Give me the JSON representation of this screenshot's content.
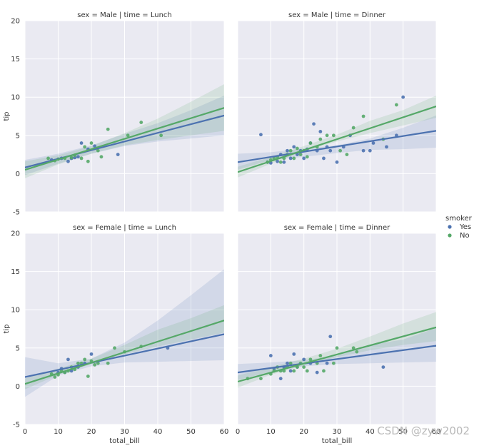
{
  "chart_data": {
    "type": "scatter",
    "subtype": "facet-grid-regression",
    "xlabel": "total_bill",
    "ylabel": "tip",
    "xlim": [
      0,
      60
    ],
    "ylim": [
      -5,
      20
    ],
    "xticks": [
      0,
      10,
      20,
      30,
      40,
      50,
      60
    ],
    "yticks": [
      -5,
      0,
      5,
      10,
      15,
      20
    ],
    "grid": true,
    "legend": {
      "title": "smoker",
      "placement": "right",
      "entries": [
        {
          "label": "Yes",
          "color": "#4c72b0"
        },
        {
          "label": "No",
          "color": "#55a868"
        }
      ]
    },
    "panels": [
      {
        "title": "sex = Male | time = Lunch",
        "series": [
          {
            "name": "Yes",
            "points": [
              [
                8,
                1.8
              ],
              [
                11,
                2.0
              ],
              [
                13,
                1.6
              ],
              [
                14,
                2.0
              ],
              [
                15,
                2.1
              ],
              [
                16,
                2.2
              ],
              [
                17,
                4.0
              ],
              [
                19,
                3.2
              ],
              [
                21,
                3.6
              ],
              [
                28,
                2.5
              ]
            ],
            "fit": {
              "x": [
                0,
                60
              ],
              "y": [
                0.8,
                7.6
              ]
            },
            "ci": {
              "x": [
                0,
                10,
                20,
                30,
                40,
                50,
                60
              ],
              "lower": [
                -0.2,
                1.3,
                2.6,
                3.6,
                4.2,
                4.6,
                5.0
              ],
              "upper": [
                1.8,
                2.6,
                3.7,
                5.2,
                6.6,
                8.3,
                10.2
              ]
            }
          },
          {
            "name": "No",
            "points": [
              [
                7,
                2.0
              ],
              [
                9,
                1.7
              ],
              [
                10,
                1.9
              ],
              [
                12,
                2.0
              ],
              [
                14,
                2.1
              ],
              [
                15,
                2.4
              ],
              [
                17,
                2.0
              ],
              [
                18,
                3.5
              ],
              [
                19,
                1.6
              ],
              [
                20,
                4.0
              ],
              [
                22,
                3.0
              ],
              [
                23,
                2.2
              ],
              [
                25,
                5.8
              ],
              [
                31,
                5.0
              ],
              [
                35,
                6.7
              ],
              [
                41,
                5.0
              ]
            ],
            "fit": {
              "x": [
                0,
                60
              ],
              "y": [
                0.5,
                8.6
              ]
            },
            "ci": {
              "x": [
                0,
                10,
                20,
                30,
                40,
                50,
                60
              ],
              "lower": [
                -0.6,
                1.2,
                2.6,
                3.7,
                4.4,
                5.0,
                5.6
              ],
              "upper": [
                1.6,
                2.4,
                3.6,
                5.3,
                7.2,
                9.4,
                11.7
              ]
            }
          }
        ]
      },
      {
        "title": "sex = Male | time = Dinner",
        "series": [
          {
            "name": "Yes",
            "points": [
              [
                7,
                5.1
              ],
              [
                9,
                1.5
              ],
              [
                10,
                1.4
              ],
              [
                12,
                1.6
              ],
              [
                13,
                2.5
              ],
              [
                14,
                1.5
              ],
              [
                15,
                3.0
              ],
              [
                16,
                2.0
              ],
              [
                17,
                3.5
              ],
              [
                18,
                2.5
              ],
              [
                19,
                3.0
              ],
              [
                20,
                2.0
              ],
              [
                21,
                3.2
              ],
              [
                22,
                4.0
              ],
              [
                23,
                6.5
              ],
              [
                24,
                3.0
              ],
              [
                25,
                5.5
              ],
              [
                26,
                2.0
              ],
              [
                27,
                3.5
              ],
              [
                28,
                3.0
              ],
              [
                30,
                1.5
              ],
              [
                32,
                3.5
              ],
              [
                34,
                5.0
              ],
              [
                38,
                3.0
              ],
              [
                40,
                3.0
              ],
              [
                41,
                4.0
              ],
              [
                45,
                3.5
              ],
              [
                48,
                5.0
              ],
              [
                50,
                10.0
              ]
            ],
            "fit": {
              "x": [
                0,
                60
              ],
              "y": [
                1.5,
                5.6
              ]
            },
            "ci": {
              "x": [
                0,
                10,
                20,
                30,
                40,
                50,
                60
              ],
              "lower": [
                0.5,
                1.8,
                2.2,
                2.7,
                3.1,
                3.2,
                3.4
              ],
              "upper": [
                2.6,
                2.8,
                3.3,
                3.7,
                4.6,
                6.0,
                7.6
              ]
            }
          },
          {
            "name": "No",
            "points": [
              [
                9,
                1.5
              ],
              [
                10,
                1.8
              ],
              [
                11,
                2.0
              ],
              [
                12,
                2.2
              ],
              [
                13,
                1.5
              ],
              [
                14,
                2.0
              ],
              [
                15,
                2.5
              ],
              [
                16,
                3.0
              ],
              [
                17,
                2.0
              ],
              [
                18,
                3.3
              ],
              [
                19,
                2.5
              ],
              [
                20,
                3.0
              ],
              [
                21,
                2.2
              ],
              [
                22,
                4.0
              ],
              [
                24,
                3.5
              ],
              [
                25,
                4.5
              ],
              [
                27,
                5.0
              ],
              [
                29,
                5.0
              ],
              [
                31,
                3.0
              ],
              [
                33,
                2.5
              ],
              [
                35,
                6.0
              ],
              [
                38,
                7.5
              ],
              [
                44,
                4.5
              ],
              [
                48,
                9.0
              ]
            ],
            "fit": {
              "x": [
                0,
                60
              ],
              "y": [
                0.2,
                8.8
              ]
            },
            "ci": {
              "x": [
                0,
                10,
                20,
                30,
                40,
                50,
                60
              ],
              "lower": [
                -0.5,
                1.3,
                2.9,
                4.2,
                5.3,
                6.3,
                7.3
              ],
              "upper": [
                0.9,
                2.2,
                3.6,
                5.1,
                6.9,
                8.3,
                10.2
              ]
            }
          }
        ]
      },
      {
        "title": "sex = Female | time = Lunch",
        "series": [
          {
            "name": "Yes",
            "points": [
              [
                10,
                1.8
              ],
              [
                11,
                2.3
              ],
              [
                12,
                1.8
              ],
              [
                13,
                3.5
              ],
              [
                14,
                2.0
              ],
              [
                16,
                2.5
              ],
              [
                18,
                3.0
              ],
              [
                20,
                4.2
              ],
              [
                43,
                5.0
              ]
            ],
            "fit": {
              "x": [
                0,
                60
              ],
              "y": [
                1.2,
                6.8
              ]
            },
            "ci": {
              "x": [
                0,
                10,
                20,
                30,
                40,
                50,
                60
              ],
              "lower": [
                -1.4,
                1.4,
                2.6,
                3.1,
                3.2,
                3.3,
                3.4
              ],
              "upper": [
                3.8,
                3.0,
                3.6,
                5.7,
                8.6,
                11.9,
                15.3
              ]
            }
          },
          {
            "name": "No",
            "points": [
              [
                8,
                1.6
              ],
              [
                9,
                1.2
              ],
              [
                10,
                1.5
              ],
              [
                11,
                2.0
              ],
              [
                12,
                1.8
              ],
              [
                13,
                2.0
              ],
              [
                14,
                2.5
              ],
              [
                15,
                2.2
              ],
              [
                16,
                3.0
              ],
              [
                17,
                3.0
              ],
              [
                18,
                3.5
              ],
              [
                19,
                1.3
              ],
              [
                20,
                3.3
              ],
              [
                21,
                2.8
              ],
              [
                22,
                3.0
              ],
              [
                25,
                3.0
              ],
              [
                27,
                5.0
              ],
              [
                30,
                4.5
              ],
              [
                35,
                5.2
              ]
            ],
            "fit": {
              "x": [
                0,
                60
              ],
              "y": [
                0.3,
                8.6
              ]
            },
            "ci": {
              "x": [
                0,
                10,
                20,
                30,
                40,
                50,
                60
              ],
              "lower": [
                -0.4,
                1.5,
                2.9,
                4.2,
                5.2,
                6.1,
                7.0
              ],
              "upper": [
                1.0,
                2.3,
                3.6,
                5.4,
                7.4,
                8.9,
                10.6
              ]
            }
          }
        ]
      },
      {
        "title": "sex = Female | time = Dinner",
        "series": [
          {
            "name": "Yes",
            "points": [
              [
                10,
                4.0
              ],
              [
                11,
                2.3
              ],
              [
                13,
                1.0
              ],
              [
                14,
                2.5
              ],
              [
                15,
                3.0
              ],
              [
                16,
                2.0
              ],
              [
                17,
                4.2
              ],
              [
                18,
                2.5
              ],
              [
                20,
                3.5
              ],
              [
                22,
                3.0
              ],
              [
                24,
                1.8
              ],
              [
                27,
                3.0
              ],
              [
                28,
                6.5
              ],
              [
                44,
                2.5
              ]
            ],
            "fit": {
              "x": [
                0,
                60
              ],
              "y": [
                1.8,
                5.3
              ]
            },
            "ci": {
              "x": [
                0,
                10,
                20,
                30,
                40,
                50,
                60
              ],
              "lower": [
                0.8,
                1.9,
                2.6,
                2.9,
                3.0,
                3.1,
                3.2
              ],
              "upper": [
                2.9,
                3.1,
                3.4,
                4.0,
                5.4,
                6.1,
                7.6
              ]
            }
          },
          {
            "name": "No",
            "points": [
              [
                3,
                1.0
              ],
              [
                7,
                1.0
              ],
              [
                10,
                1.6
              ],
              [
                11,
                2.0
              ],
              [
                12,
                2.5
              ],
              [
                13,
                2.0
              ],
              [
                14,
                2.0
              ],
              [
                15,
                2.5
              ],
              [
                16,
                3.0
              ],
              [
                17,
                2.0
              ],
              [
                18,
                2.5
              ],
              [
                19,
                3.0
              ],
              [
                20,
                2.5
              ],
              [
                21,
                2.0
              ],
              [
                22,
                3.5
              ],
              [
                24,
                3.0
              ],
              [
                25,
                4.0
              ],
              [
                26,
                2.0
              ],
              [
                29,
                3.0
              ],
              [
                30,
                5.0
              ],
              [
                35,
                5.0
              ],
              [
                36,
                4.5
              ]
            ],
            "fit": {
              "x": [
                0,
                60
              ],
              "y": [
                0.6,
                7.7
              ]
            },
            "ci": {
              "x": [
                0,
                10,
                20,
                30,
                40,
                50,
                60
              ],
              "lower": [
                -0.2,
                1.5,
                2.7,
                3.8,
                4.7,
                5.4,
                5.9
              ],
              "upper": [
                1.4,
                2.5,
                3.6,
                4.9,
                6.5,
                8.2,
                9.7
              ]
            }
          }
        ]
      }
    ]
  },
  "watermark": "CSDN @zyw2002"
}
